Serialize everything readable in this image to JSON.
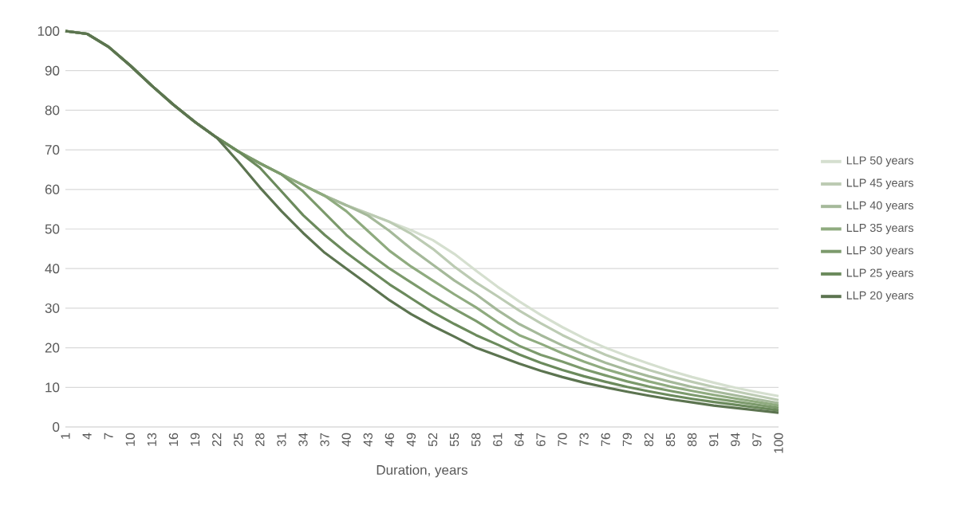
{
  "chart_data": {
    "type": "line",
    "xlabel": "Duration, years",
    "x": [
      1,
      4,
      7,
      10,
      13,
      16,
      19,
      22,
      25,
      28,
      31,
      34,
      37,
      40,
      43,
      46,
      49,
      52,
      55,
      58,
      61,
      64,
      67,
      70,
      73,
      76,
      79,
      82,
      85,
      88,
      91,
      94,
      97,
      100
    ],
    "xlim": [
      1,
      100
    ],
    "xticks": [
      1,
      4,
      7,
      10,
      13,
      16,
      19,
      22,
      25,
      28,
      31,
      34,
      37,
      40,
      43,
      46,
      49,
      52,
      55,
      58,
      61,
      64,
      67,
      70,
      73,
      76,
      79,
      82,
      85,
      88,
      91,
      94,
      97,
      100
    ],
    "ylim": [
      0,
      100
    ],
    "yticks": [
      0,
      10,
      20,
      30,
      40,
      50,
      60,
      70,
      80,
      90,
      100
    ],
    "grid": "y",
    "legend": "right",
    "series": [
      {
        "name": "LLP 50 years",
        "color": "#d5dfcf",
        "values": [
          100,
          99.3,
          96,
          91.3,
          86.2,
          81.4,
          77,
          73.1,
          69.6,
          66.6,
          63.8,
          61.1,
          58.4,
          56.0,
          53.9,
          51.8,
          49.7,
          47.2,
          43.7,
          39.5,
          35.4,
          31.7,
          28.3,
          25.2,
          22.4,
          20.0,
          17.9,
          16.0,
          14.2,
          12.6,
          11.2,
          9.9,
          8.8,
          7.8
        ]
      },
      {
        "name": "LLP 45 years",
        "color": "#bccbb3",
        "values": [
          100,
          99.3,
          96,
          91.3,
          86.2,
          81.4,
          77,
          73.1,
          69.6,
          66.6,
          63.8,
          61.1,
          58.4,
          56.0,
          53.9,
          51.8,
          48.8,
          45,
          40.5,
          36.5,
          33,
          29.4,
          26.2,
          23.2,
          20.6,
          18.2,
          16.2,
          14.4,
          12.8,
          11.4,
          10.1,
          9,
          7.9,
          6.8
        ]
      },
      {
        "name": "LLP 40 years",
        "color": "#a5b99a",
        "values": [
          100,
          99.3,
          96,
          91.3,
          86.2,
          81.4,
          77,
          73.1,
          69.6,
          66.6,
          63.8,
          61.1,
          58.4,
          56.0,
          53.4,
          49.5,
          45,
          41,
          37,
          33.5,
          29.5,
          26,
          23.2,
          20.6,
          18.3,
          16.2,
          14.4,
          12.8,
          11.4,
          10.1,
          9,
          8,
          7,
          6
        ]
      },
      {
        "name": "LLP 35 years",
        "color": "#8fab7f",
        "values": [
          100,
          99.3,
          96,
          91.3,
          86.2,
          81.4,
          77,
          73.1,
          69.6,
          66.6,
          63.8,
          61.1,
          58.4,
          54.5,
          49.5,
          44.5,
          40.5,
          37,
          33.5,
          30.2,
          26.5,
          23.2,
          21,
          18.6,
          16.5,
          14.6,
          13,
          11.5,
          10.2,
          9.1,
          8.1,
          7.2,
          6.3,
          5.4
        ]
      },
      {
        "name": "LLP 30 years",
        "color": "#7c9a6c",
        "values": [
          100,
          99.3,
          96,
          91.3,
          86.2,
          81.4,
          77,
          73.1,
          69.6,
          66.6,
          63.8,
          59.5,
          54,
          48.5,
          44,
          40,
          36.5,
          33,
          29.8,
          26.8,
          23.4,
          20.5,
          18.2,
          16.5,
          14.6,
          13,
          11.5,
          10.2,
          9.1,
          8.1,
          7.2,
          6.4,
          5.6,
          4.8
        ]
      },
      {
        "name": "LLP 25 years",
        "color": "#6b8a5c",
        "values": [
          100,
          99.3,
          96,
          91.3,
          86.2,
          81.4,
          77,
          73.1,
          69.6,
          65.5,
          59.5,
          53.5,
          48.5,
          44,
          40,
          36,
          32.5,
          29,
          26,
          23.2,
          20.8,
          18.3,
          16.2,
          14.4,
          12.8,
          11.4,
          10.1,
          9,
          8,
          7.1,
          6.3,
          5.6,
          4.9,
          4.2
        ]
      },
      {
        "name": "LLP 20 years",
        "color": "#5c7450",
        "values": [
          100,
          99.3,
          96,
          91.3,
          86.2,
          81.4,
          77,
          73.1,
          67,
          60.5,
          54.5,
          49,
          44,
          40,
          36,
          32,
          28.5,
          25.5,
          22.8,
          20,
          18,
          16,
          14.2,
          12.6,
          11.2,
          10,
          8.9,
          7.9,
          7,
          6.2,
          5.4,
          4.8,
          4.2,
          3.6
        ]
      }
    ]
  }
}
